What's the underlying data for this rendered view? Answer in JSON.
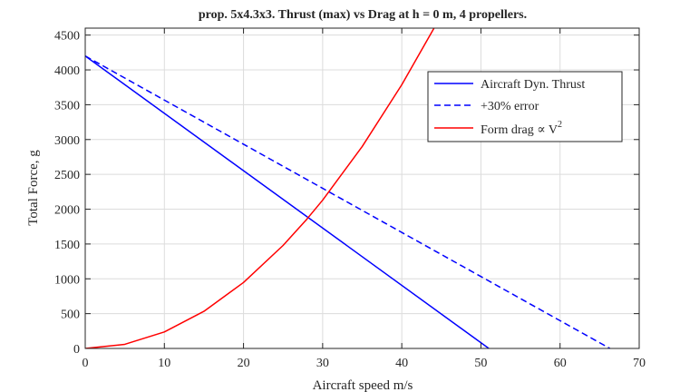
{
  "chart_data": {
    "type": "line",
    "title": "prop. 5x4.3x3. Thrust (max) vs Drag at h = 0 m, 4 propellers.",
    "xlabel": "Aircraft speed m/s",
    "ylabel": "Total Force, g",
    "xlim": [
      0,
      70
    ],
    "ylim": [
      0,
      4600
    ],
    "xticks": [
      0,
      10,
      20,
      30,
      40,
      50,
      60,
      70
    ],
    "xtick_labels": [
      "0",
      "10",
      "20",
      "30",
      "40",
      "50",
      "60",
      "70"
    ],
    "yticks": [
      0,
      500,
      1000,
      1500,
      2000,
      2500,
      3000,
      3500,
      4000,
      4500
    ],
    "ytick_labels": [
      "0",
      "500",
      "1000",
      "1500",
      "2000",
      "2500",
      "3000",
      "3500",
      "4000",
      "4500"
    ],
    "grid": true,
    "legend_position": "top-right",
    "legend": {
      "entry1": "Aircraft Dyn. Thrust",
      "entry2": "+30% error",
      "entry3_main": "Form drag ∝ V",
      "entry3_sup": "2"
    },
    "series": [
      {
        "name": "Aircraft Dyn. Thrust",
        "color": "#0000ff",
        "style": "solid",
        "x": [
          0,
          51
        ],
        "y": [
          4200,
          0
        ]
      },
      {
        "name": "+30% error",
        "color": "#0000ff",
        "style": "dashed",
        "x": [
          0,
          66.3
        ],
        "y": [
          4200,
          0
        ]
      },
      {
        "name": "Form drag ∝ V2",
        "color": "#ff0000",
        "style": "solid",
        "x": [
          0,
          5,
          10,
          15,
          20,
          25,
          28,
          30,
          35,
          40,
          44.3
        ],
        "y": [
          0,
          59,
          237,
          533,
          947,
          1479,
          1856,
          2130,
          2900,
          3787,
          4645
        ]
      }
    ]
  }
}
